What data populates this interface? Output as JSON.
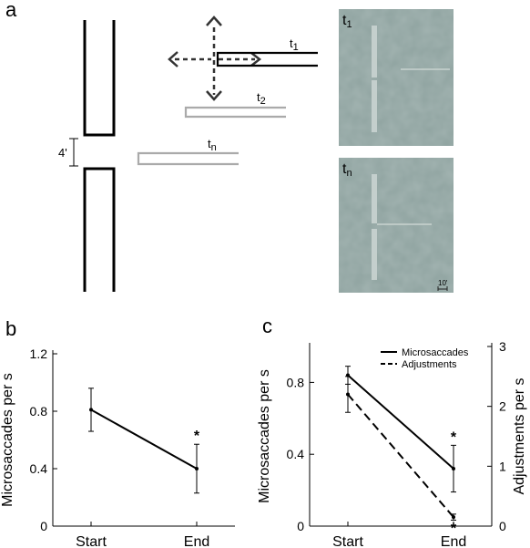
{
  "panels": {
    "a": "a",
    "b": "b",
    "c": "c"
  },
  "diagram": {
    "gap_label": "4'",
    "bar_labels": {
      "t1": "t",
      "t1_sub": "1",
      "t2": "t",
      "t2_sub": "2",
      "tn": "t",
      "tn_sub": "n"
    },
    "photo_labels": {
      "top": "t",
      "top_sub": "1",
      "bottom": "t",
      "bottom_sub": "n"
    },
    "scale_label": "10'",
    "photo_color": "#8fa3a0"
  },
  "chart_data": [
    {
      "type": "line",
      "panel": "b",
      "categories": [
        "Start",
        "End"
      ],
      "series": [
        {
          "name": "",
          "values": [
            0.81,
            0.4
          ],
          "error": [
            0.15,
            0.17
          ],
          "significance": [
            "",
            "*"
          ]
        }
      ],
      "xlabel": "",
      "ylabel": "Microsaccades per s",
      "ylim": [
        0,
        1.2
      ],
      "yticks": [
        "0",
        "0.4",
        "0.8",
        "1.2"
      ]
    },
    {
      "type": "line",
      "panel": "c",
      "categories": [
        "Start",
        "End"
      ],
      "series": [
        {
          "name": "Microsaccades",
          "axis": "left",
          "values": [
            0.84,
            0.32
          ],
          "error": [
            0.05,
            0.13
          ],
          "significance": [
            "",
            "*"
          ],
          "dash": "solid"
        },
        {
          "name": "Adjustments",
          "axis": "right",
          "values": [
            2.2,
            0.15
          ],
          "error": [
            0.3,
            0.05
          ],
          "significance": [
            "",
            "*"
          ],
          "dash": "dashed"
        }
      ],
      "ylabel": "Microsaccades per s",
      "ylabel_right": "Adjustments per s",
      "ylim": [
        0,
        1.0
      ],
      "yticks": [
        "0",
        "0.4",
        "0.8"
      ],
      "ylim_right": [
        0,
        3
      ],
      "yticks_right": [
        "0",
        "1",
        "2",
        "3"
      ]
    }
  ]
}
